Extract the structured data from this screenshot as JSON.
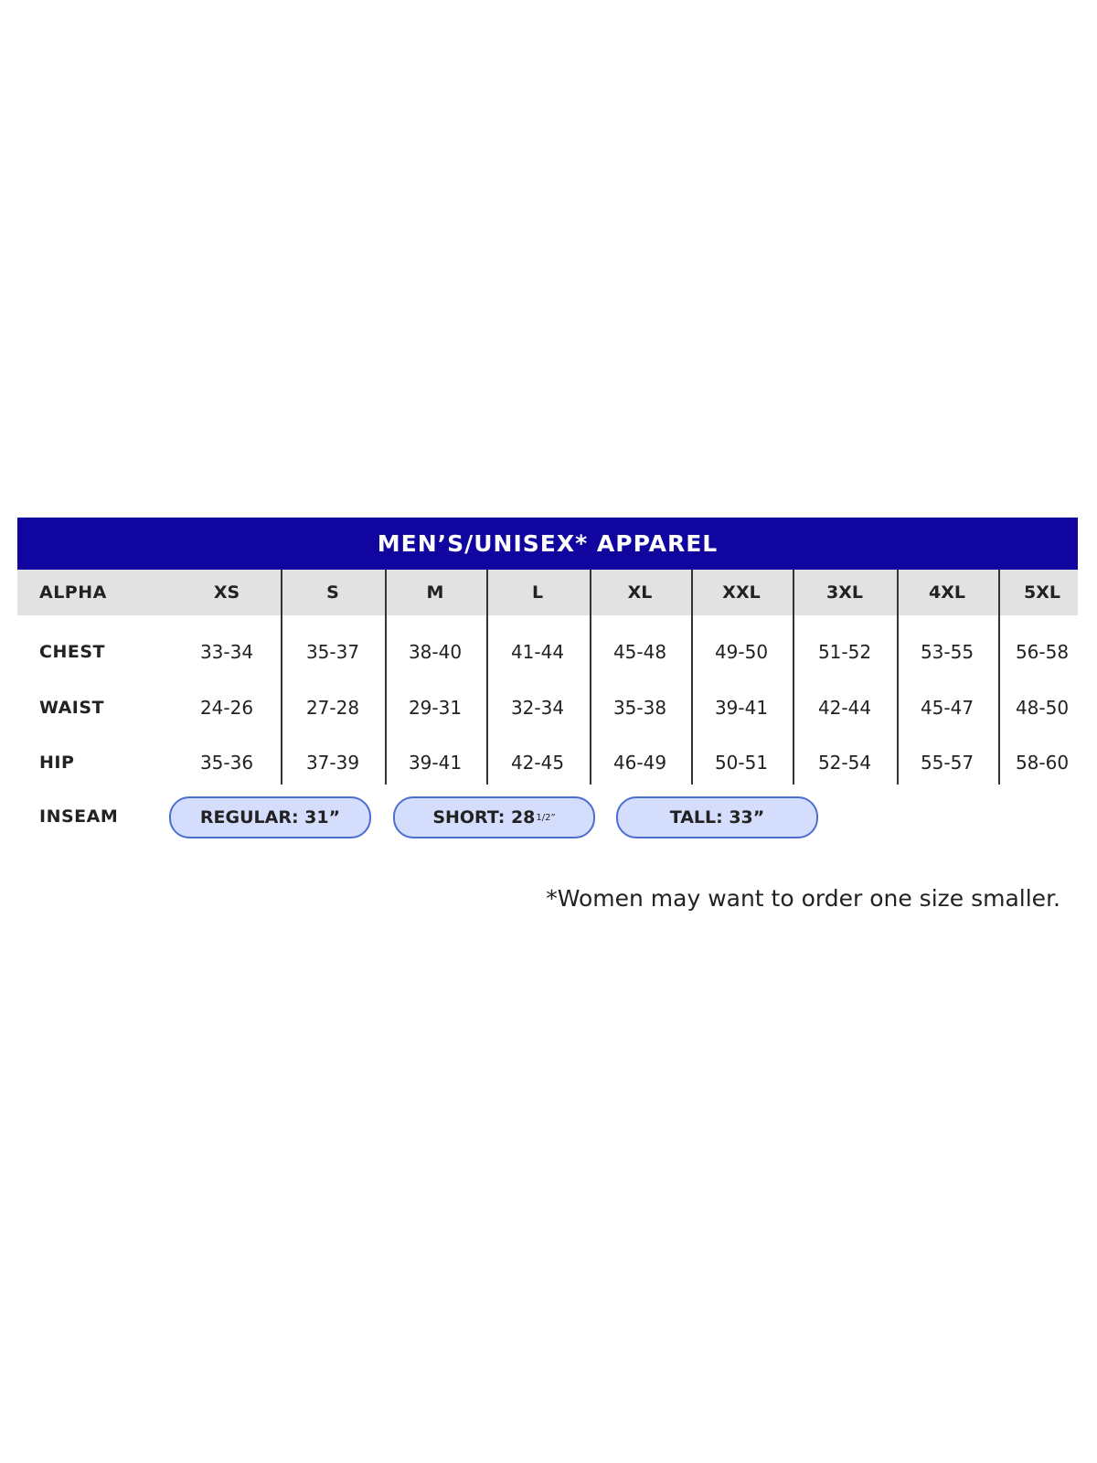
{
  "title": "MEN’S/UNISEX* APPAREL",
  "header": {
    "label": "ALPHA",
    "sizes": [
      "XS",
      "S",
      "M",
      "L",
      "XL",
      "XXL",
      "3XL",
      "4XL",
      "5XL"
    ]
  },
  "rows": [
    {
      "label": "CHEST",
      "values": [
        "33-34",
        "35-37",
        "38-40",
        "41-44",
        "45-48",
        "49-50",
        "51-52",
        "53-55",
        "56-58"
      ]
    },
    {
      "label": "WAIST",
      "values": [
        "24-26",
        "27-28",
        "29-31",
        "32-34",
        "35-38",
        "39-41",
        "42-44",
        "45-47",
        "48-50"
      ]
    },
    {
      "label": "HIP",
      "values": [
        "35-36",
        "37-39",
        "39-41",
        "42-45",
        "46-49",
        "50-51",
        "52-54",
        "55-57",
        "58-60"
      ]
    }
  ],
  "inseam": {
    "label": "INSEAM",
    "options": [
      {
        "text": "REGULAR: 31”",
        "sup": ""
      },
      {
        "text": "SHORT: 28",
        "sup": "1/2”"
      },
      {
        "text": "TALL: 33”",
        "sup": ""
      }
    ]
  },
  "footnote": "*Women may want to order one size smaller.",
  "colors": {
    "banner": "#10069f",
    "header_row": "#e2e2e2",
    "pill_fill": "#d4ddfc",
    "pill_border": "#4a6fd0"
  }
}
